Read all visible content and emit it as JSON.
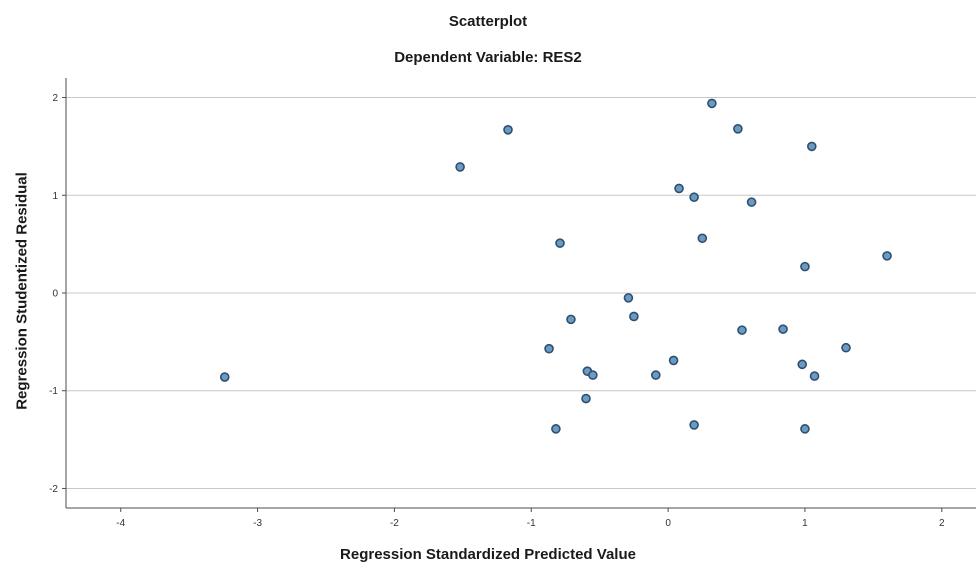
{
  "chart_data": {
    "type": "scatter",
    "title": "Scatterplot",
    "subtitle": "Dependent Variable: RES2",
    "xlabel": "Regression Standardized Predicted Value",
    "ylabel": "Regression Studentized Residual",
    "xlim": [
      -4.4,
      2.25
    ],
    "ylim": [
      -2.2,
      2.2
    ],
    "x_ticks": [
      -4,
      -3,
      -2,
      -1,
      0,
      1,
      2
    ],
    "y_ticks": [
      -2,
      -1,
      0,
      1,
      2
    ],
    "grid": "horizontal",
    "colors": {
      "marker_fill": "#6b9bc3",
      "marker_edge": "#2f4f6f",
      "grid": "#c8c8c8",
      "axis": "#4d4d4d"
    },
    "points": [
      {
        "x": 0.32,
        "y": 1.94
      },
      {
        "x": -1.17,
        "y": 1.67
      },
      {
        "x": 0.51,
        "y": 1.68
      },
      {
        "x": 1.05,
        "y": 1.5
      },
      {
        "x": -1.52,
        "y": 1.29
      },
      {
        "x": 0.08,
        "y": 1.07
      },
      {
        "x": 0.19,
        "y": 0.98
      },
      {
        "x": 0.61,
        "y": 0.93
      },
      {
        "x": -0.79,
        "y": 0.51
      },
      {
        "x": 0.25,
        "y": 0.56
      },
      {
        "x": 1.6,
        "y": 0.38
      },
      {
        "x": 1.0,
        "y": 0.27
      },
      {
        "x": -0.29,
        "y": -0.05
      },
      {
        "x": -0.25,
        "y": -0.24
      },
      {
        "x": -0.71,
        "y": -0.27
      },
      {
        "x": 0.54,
        "y": -0.38
      },
      {
        "x": 0.84,
        "y": -0.37
      },
      {
        "x": 1.3,
        "y": -0.56
      },
      {
        "x": -0.87,
        "y": -0.57
      },
      {
        "x": 0.04,
        "y": -0.69
      },
      {
        "x": 0.98,
        "y": -0.73
      },
      {
        "x": -0.59,
        "y": -0.8
      },
      {
        "x": -0.55,
        "y": -0.84
      },
      {
        "x": -0.09,
        "y": -0.84
      },
      {
        "x": 1.07,
        "y": -0.85
      },
      {
        "x": -3.24,
        "y": -0.86
      },
      {
        "x": -0.6,
        "y": -1.08
      },
      {
        "x": -0.82,
        "y": -1.39
      },
      {
        "x": 0.19,
        "y": -1.35
      },
      {
        "x": 1.0,
        "y": -1.39
      }
    ]
  }
}
